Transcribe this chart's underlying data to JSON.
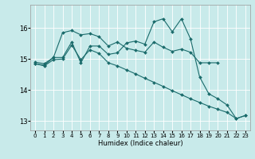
{
  "xlabel": "Humidex (Indice chaleur)",
  "bg_color": "#c8eaea",
  "grid_color": "#ffffff",
  "line_color": "#1a6b6b",
  "xlim": [
    -0.5,
    23.5
  ],
  "ylim": [
    12.7,
    16.75
  ],
  "yticks": [
    13,
    14,
    15,
    16
  ],
  "xticks": [
    0,
    1,
    2,
    3,
    4,
    5,
    6,
    7,
    8,
    9,
    10,
    11,
    12,
    13,
    14,
    15,
    16,
    17,
    18,
    19,
    20,
    21,
    22,
    23
  ],
  "line1_y": [
    14.9,
    14.85,
    15.05,
    15.85,
    15.92,
    15.78,
    15.82,
    15.72,
    15.42,
    15.55,
    15.35,
    15.28,
    15.22,
    15.55,
    15.38,
    15.25,
    15.32,
    15.22,
    14.88,
    14.88,
    14.88,
    null,
    null,
    null
  ],
  "line2_y": [
    14.85,
    14.8,
    15.05,
    15.05,
    15.55,
    14.88,
    15.42,
    15.42,
    15.15,
    15.2,
    15.52,
    15.58,
    15.48,
    16.2,
    16.3,
    15.88,
    16.3,
    15.65,
    14.42,
    13.88,
    13.72,
    13.52,
    13.08,
    13.18
  ],
  "line3_y": [
    14.85,
    14.78,
    14.98,
    15.0,
    15.45,
    14.98,
    15.3,
    15.18,
    14.88,
    14.78,
    14.65,
    14.52,
    14.38,
    14.25,
    14.12,
    13.98,
    13.85,
    13.72,
    13.6,
    13.48,
    13.38,
    13.28,
    13.08,
    13.18
  ]
}
